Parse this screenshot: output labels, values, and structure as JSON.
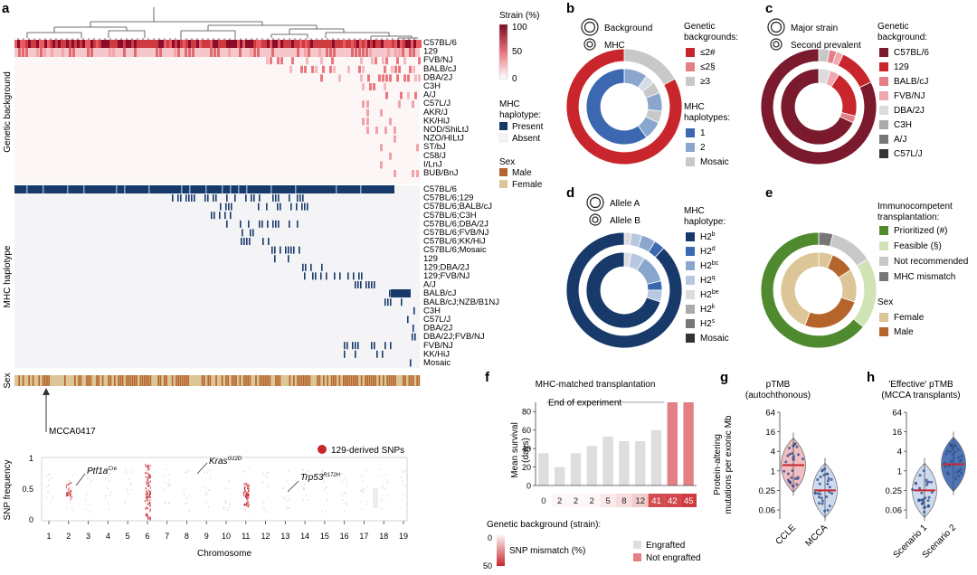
{
  "panel_letters": [
    "a",
    "b",
    "c",
    "d",
    "e",
    "f",
    "g",
    "h"
  ],
  "colors": {
    "navy": "#183a6b",
    "brown": "#b5652c",
    "tan": "#dcc596",
    "red": "#c8262c",
    "pink": "#e37f85",
    "lightpink": "#efa8ad",
    "grey": "#c8c8c8",
    "darkred": "#7a1a2c"
  },
  "panel_a": {
    "y_label_genetic": "Genetic background",
    "y_label_mhc": "MHC haplotype",
    "y_label_sex": "Sex",
    "genetic_rows": [
      "C57BL/6",
      "129",
      "FVB/NJ",
      "BALB/cJ",
      "DBA/2J",
      "C3H",
      "A/J",
      "C57L/J",
      "AKR/J",
      "KK/HiJ",
      "NOD/ShiLtJ",
      "NZO/HILtJ",
      "ST/bJ",
      "C58/J",
      "I/LnJ",
      "BUB/BnJ"
    ],
    "mhc_rows": [
      "C57BL/6",
      "C57BL/6;129",
      "C57BL/6;BALB/cJ",
      "C57BL/6;C3H",
      "C57BL/6;DBA/2J",
      "C57BL/6;FVB/NJ",
      "C57BL/6;KK/HiJ",
      "C57BL/6;Mosaic",
      "129",
      "129;DBA/2J",
      "129;FVB/NJ",
      "A/J",
      "BALB/cJ",
      "BALB/cJ;NZB/B1NJ",
      "C3H",
      "C57L/J",
      "DBA/2J",
      "DBA/2J;FVB/NJ",
      "FVB/NJ",
      "KK/HiJ",
      "Mosaic"
    ],
    "strain_legend": {
      "title": "Strain (%)",
      "ticks": [
        "100",
        "50",
        "0"
      ]
    },
    "mhc_legend": {
      "title_1": "MHC",
      "title_2": "haplotype:",
      "present": "Present",
      "absent": "Absent"
    },
    "sex_legend": {
      "title": "Sex",
      "male": "Male",
      "female": "Female"
    },
    "arrow_label": "MCCA0417",
    "snp_plot": {
      "ylabel": "SNP frequency",
      "xlabel": "Chromosome",
      "y_ticks": [
        "1",
        "0.5",
        "0"
      ],
      "chromosomes": [
        "1",
        "2",
        "3",
        "4",
        "5",
        "6",
        "7",
        "8",
        "9",
        "10",
        "11",
        "12",
        "13",
        "14",
        "15",
        "16",
        "17",
        "18",
        "19"
      ],
      "legend": "129-derived SNPs",
      "gene_labels": [
        {
          "name": "Ptf1a",
          "sup": "Cre"
        },
        {
          "name": "Kras",
          "sup": "G12D"
        },
        {
          "name": "Trp53",
          "sup": "R172H"
        }
      ]
    }
  },
  "panel_b": {
    "legend_outer": "Background",
    "legend_inner": "MHC",
    "genetic_title_1": "Genetic",
    "genetic_title_2": "backgrounds:",
    "genetic_items": [
      "≤2#",
      "≤2§",
      "≥3"
    ],
    "mhc_title_1": "MHC",
    "mhc_title_2": "haplotypes:",
    "mhc_items": [
      "1",
      "2",
      "Mosaic"
    ]
  },
  "panel_c": {
    "legend_outer": "Major strain",
    "legend_inner": "Second prevalent",
    "title_1": "Genetic",
    "title_2": "background:",
    "items": [
      "C57BL/6",
      "129",
      "BALB/cJ",
      "FVB/NJ",
      "DBA/2J",
      "C3H",
      "A/J",
      "C57L/J"
    ]
  },
  "panel_d": {
    "legend_outer": "Allele A",
    "legend_inner": "Allele B",
    "title_1": "MHC",
    "title_2": "haplotype:",
    "items": [
      {
        "base": "H2",
        "sup": "b"
      },
      {
        "base": "H2",
        "sup": "d"
      },
      {
        "base": "H2",
        "sup": "bc"
      },
      {
        "base": "H2",
        "sup": "q"
      },
      {
        "base": "H2",
        "sup": "be"
      },
      {
        "base": "H2",
        "sup": "k"
      },
      {
        "base": "H2",
        "sup": "s"
      },
      {
        "base": "Mosaic",
        "sup": ""
      }
    ]
  },
  "panel_e": {
    "title_1": "Immunocompetent",
    "title_2": "transplantation:",
    "items": [
      "Prioritized (#)",
      "Feasible (§)",
      "Not recommended",
      "MHC mismatch"
    ],
    "sex_title": "Sex",
    "sex_items": [
      "Female",
      "Male"
    ]
  },
  "chart_data": [
    {
      "id": "panel_f",
      "type": "bar",
      "title": "MHC-matched transplantation",
      "ylabel": "Mean survival (days)",
      "ylim": [
        0,
        90
      ],
      "y_ticks": [
        0,
        20,
        40,
        60,
        80
      ],
      "categories": [
        "0",
        "2",
        "2",
        "2",
        "5",
        "8",
        "12",
        "41",
        "42",
        "45"
      ],
      "values": [
        35,
        20,
        35,
        43,
        53,
        48,
        48,
        60,
        90,
        90
      ],
      "engrafted": [
        true,
        true,
        true,
        true,
        true,
        true,
        true,
        true,
        false,
        false
      ],
      "snp_mismatch_pct": [
        0,
        2,
        2,
        2,
        5,
        8,
        12,
        41,
        42,
        45
      ],
      "annotation": "End of experiment",
      "legend_background": "Genetic background (strain):",
      "legend_snp": "SNP mismatch (%)",
      "snp_scale": [
        "0",
        "50"
      ],
      "legend_engrafted": "Engrafted",
      "legend_not_engrafted": "Not engrafted"
    },
    {
      "id": "panel_g",
      "type": "violin",
      "title_1": "pTMB",
      "title_2": "(autochthonous)",
      "ylabel_1": "Protein-altering",
      "ylabel_2": "mutations per exonic Mb",
      "y_scale": "log",
      "y_ticks": [
        "64",
        "16",
        "4",
        "1",
        "0.25",
        "0.06"
      ],
      "categories": [
        "CCLE",
        "MCCA"
      ],
      "medians": [
        1.5,
        0.25
      ]
    },
    {
      "id": "panel_h",
      "type": "violin",
      "title_1": "'Effective' pTMB",
      "title_2": "(MCCA transplants)",
      "y_scale": "log",
      "y_ticks": [
        "64",
        "16",
        "4",
        "1",
        "0.25",
        "0.06"
      ],
      "categories": [
        "Scenario 1",
        "Scenario 2"
      ],
      "medians": [
        0.25,
        1.6
      ]
    }
  ]
}
